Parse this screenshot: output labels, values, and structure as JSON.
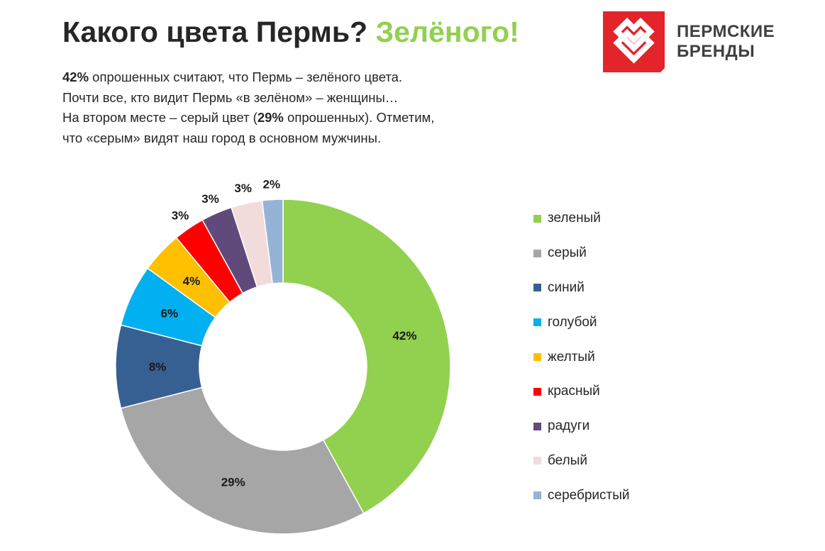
{
  "header": {
    "title_main": "Какого цвета Пермь?",
    "title_accent": "Зелёного!"
  },
  "intro": {
    "line1_bold": "42%",
    "line1_rest": " опрошенных  считают, что Пермь – зелёного цвета.",
    "line2": "Почти все, кто видит Пермь «в зелёном» – женщины…",
    "line3_start": "На втором месте – серый цвет (",
    "line3_bold": "29%",
    "line3_rest": " опрошенных).  Отметим,",
    "line4": "что «серым» видят наш город в основном мужчины."
  },
  "logo": {
    "line1": "ПЕРМСКИЕ",
    "line2": "БРЕНДЫ",
    "mark_icon": "double-heart-logo-icon",
    "mark_color": "#E3242B"
  },
  "chart_data": {
    "type": "pie",
    "donut": true,
    "categories": [
      "зеленый",
      "серый",
      "синий",
      "голубой",
      "желтый",
      "красный",
      "радуги",
      "белый",
      "серебристый"
    ],
    "values": [
      42,
      29,
      8,
      6,
      4,
      3,
      3,
      3,
      2
    ],
    "value_labels": [
      "42%",
      "29%",
      "8%",
      "6%",
      "4%",
      "3%",
      "3%",
      "3%",
      "2%"
    ],
    "colors": [
      "#92D050",
      "#A6A6A6",
      "#376092",
      "#00B0F0",
      "#FFC000",
      "#FF0000",
      "#604A7B",
      "#F2DCDB",
      "#95B3D7"
    ],
    "legend_position": "right"
  }
}
